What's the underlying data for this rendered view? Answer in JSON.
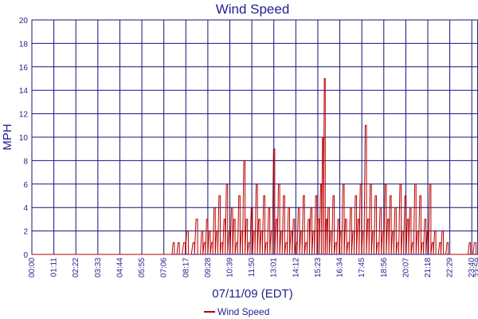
{
  "chart_data": {
    "type": "line",
    "title": "Wind Speed",
    "xlabel": "07/11/09 (EDT)",
    "ylabel": "MPH",
    "ylim": [
      0,
      20
    ],
    "xlim_minutes": [
      0,
      1440
    ],
    "yticks": [
      "0",
      "2",
      "4",
      "6",
      "8",
      "10",
      "12",
      "14",
      "16",
      "18",
      "20"
    ],
    "xticks": [
      "00:00",
      "01:11",
      "02:22",
      "03:33",
      "04:44",
      "05:55",
      "07:06",
      "08:17",
      "09:28",
      "10:39",
      "11:50",
      "13:01",
      "14:12",
      "15:23",
      "16:34",
      "17:45",
      "18:56",
      "20:07",
      "21:18",
      "22:29",
      "23:40",
      "23:59"
    ],
    "grid": true,
    "legend_position": "bottom-center",
    "colors": {
      "series": "#bb0000",
      "grid": "#14147a",
      "text": "#1f1f8f"
    },
    "series": [
      {
        "name": "Wind Speed",
        "x": [
          "00:00",
          "07:29",
          "07:36",
          "07:44",
          "07:52",
          "08:00",
          "08:10",
          "08:20",
          "08:30",
          "08:40",
          "08:50",
          "09:00",
          "09:08",
          "09:16",
          "09:24",
          "09:32",
          "09:40",
          "09:48",
          "09:56",
          "10:04",
          "10:12",
          "10:20",
          "10:28",
          "10:36",
          "10:44",
          "10:52",
          "11:00",
          "11:08",
          "11:16",
          "11:24",
          "11:32",
          "11:40",
          "11:48",
          "11:56",
          "12:04",
          "12:12",
          "12:20",
          "12:28",
          "12:36",
          "12:44",
          "12:52",
          "13:00",
          "13:08",
          "13:16",
          "13:24",
          "13:32",
          "13:40",
          "13:48",
          "13:56",
          "14:04",
          "14:12",
          "14:20",
          "14:28",
          "14:36",
          "14:44",
          "14:52",
          "15:00",
          "15:08",
          "15:16",
          "15:24",
          "15:32",
          "15:38",
          "15:44",
          "15:50",
          "15:56",
          "16:04",
          "16:12",
          "16:20",
          "16:28",
          "16:36",
          "16:44",
          "16:52",
          "17:00",
          "17:08",
          "17:16",
          "17:24",
          "17:32",
          "17:40",
          "17:48",
          "17:56",
          "18:04",
          "18:12",
          "18:20",
          "18:28",
          "18:36",
          "18:44",
          "18:52",
          "19:00",
          "19:08",
          "19:16",
          "19:24",
          "19:32",
          "19:40",
          "19:48",
          "19:56",
          "20:04",
          "20:12",
          "20:20",
          "20:28",
          "20:36",
          "20:44",
          "20:52",
          "21:00",
          "21:08",
          "21:16",
          "21:24",
          "21:32",
          "21:40",
          "21:48",
          "21:56",
          "22:04",
          "22:12",
          "22:20",
          "22:28",
          "22:36",
          "22:44",
          "22:52",
          "23:00",
          "23:08",
          "23:16",
          "23:24",
          "23:32",
          "23:40",
          "23:48",
          "23:59"
        ],
        "values": [
          0,
          0,
          1,
          0,
          1,
          0,
          1,
          2,
          0,
          1,
          3,
          0,
          2,
          1,
          3,
          2,
          1,
          4,
          2,
          5,
          1,
          3,
          6,
          2,
          4,
          3,
          1,
          5,
          2,
          8,
          3,
          1,
          4,
          2,
          6,
          3,
          2,
          5,
          1,
          4,
          2,
          9,
          3,
          6,
          2,
          5,
          1,
          4,
          2,
          3,
          1,
          4,
          2,
          5,
          1,
          3,
          4,
          2,
          5,
          3,
          6,
          10,
          15,
          3,
          4,
          2,
          5,
          1,
          3,
          2,
          6,
          3,
          1,
          4,
          2,
          5,
          3,
          6,
          2,
          11,
          3,
          6,
          2,
          5,
          1,
          4,
          2,
          6,
          3,
          5,
          2,
          4,
          1,
          6,
          2,
          5,
          3,
          4,
          1,
          6,
          2,
          5,
          1,
          3,
          2,
          6,
          1,
          2,
          0,
          1,
          2,
          0,
          1,
          0,
          0,
          0,
          0,
          0,
          0,
          0,
          0,
          1,
          0,
          1,
          0
        ]
      }
    ]
  },
  "legend": {
    "label": "Wind Speed"
  }
}
